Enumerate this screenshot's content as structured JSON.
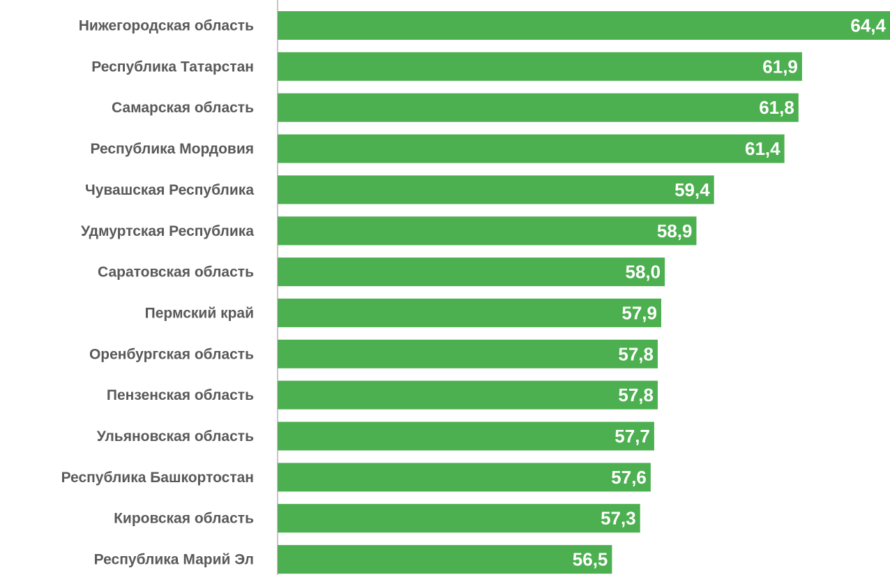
{
  "colors": {
    "bar": "#4caf50",
    "axis": "#8c8c8c",
    "category_text": "#595959",
    "value_text": "#ffffff",
    "background": "#ffffff"
  },
  "chart_data": {
    "type": "bar",
    "orientation": "horizontal",
    "title": "",
    "xlabel": "",
    "ylabel": "",
    "grid": false,
    "legend": "none",
    "xlim": [
      47,
      64.4
    ],
    "categories": [
      "Нижегородская область",
      "Республика Татарстан",
      "Самарская область",
      "Республика Мордовия",
      "Чувашская Республика",
      "Удмуртская Республика",
      "Саратовская область",
      "Пермский край",
      "Оренбургская область",
      "Пензенская область",
      "Ульяновская область",
      "Республика Башкортостан",
      "Кировская область",
      "Республика Марий Эл"
    ],
    "values": [
      64.4,
      61.9,
      61.8,
      61.4,
      59.4,
      58.9,
      58.0,
      57.9,
      57.8,
      57.8,
      57.7,
      57.6,
      57.3,
      56.5
    ],
    "value_labels": [
      "64,4",
      "61,9",
      "61,8",
      "61,4",
      "59,4",
      "58,9",
      "58,0",
      "57,9",
      "57,8",
      "57,8",
      "57,7",
      "57,6",
      "57,3",
      "56,5"
    ]
  }
}
